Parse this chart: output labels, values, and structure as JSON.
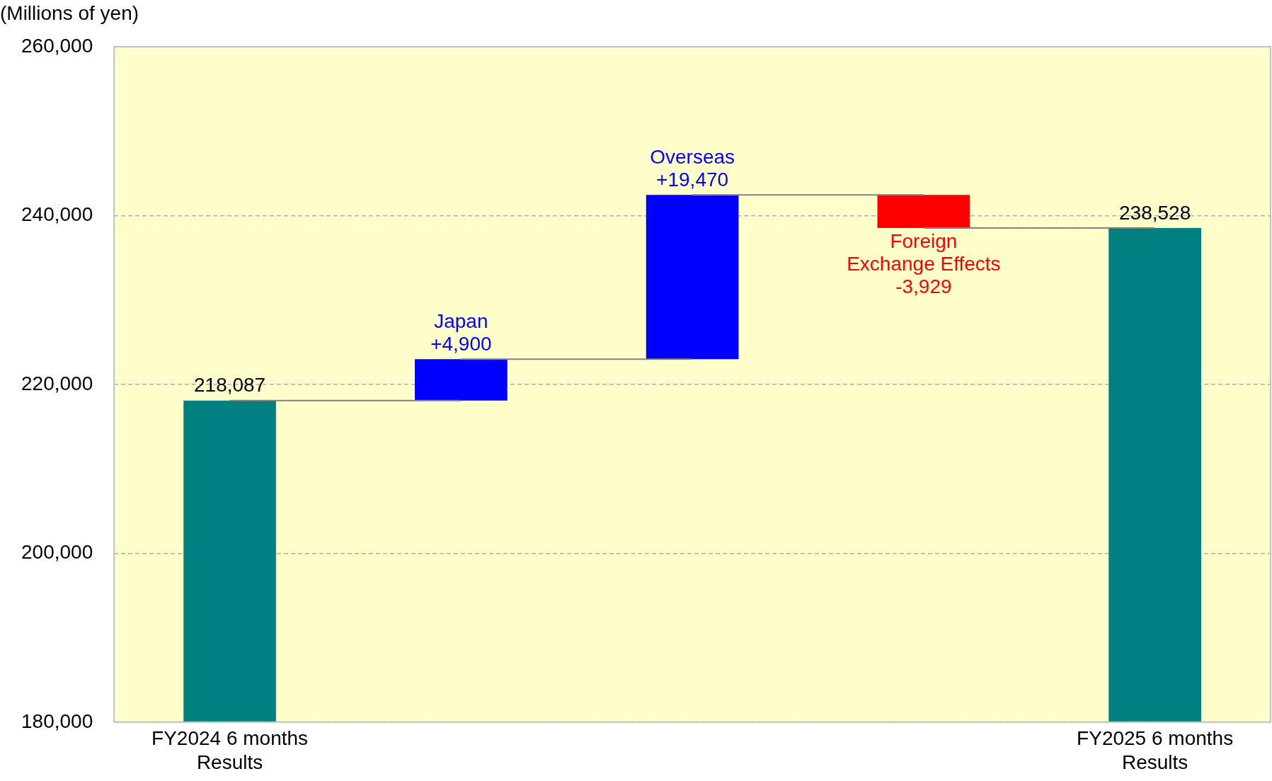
{
  "chart_data": {
    "type": "bar",
    "ylabel": "(Millions of yen)",
    "categories": [
      "FY2024 6 months\nResults",
      null,
      null,
      null,
      "FY2025 6 months\nResults"
    ],
    "values": [
      218087,
      4900,
      19470,
      -3929,
      238528
    ],
    "base": [
      null,
      218087,
      222987,
      242457,
      null
    ],
    "colors": [
      "#008080",
      "#0000ff",
      "#0000ff",
      "#ff0000",
      "#008080"
    ],
    "value_labels": [
      "218,087",
      "Japan\n+4,900",
      "Overseas\n+19,470",
      "Foreign\nExchange Effects\n-3,929",
      "238,528"
    ],
    "ylim": [
      180000,
      260000
    ],
    "yticks": [
      {
        "value": 180000,
        "label": "180,000"
      },
      {
        "value": 200000,
        "label": "200,000"
      },
      {
        "value": 220000,
        "label": "220,000"
      },
      {
        "value": 240000,
        "label": "240,000"
      },
      {
        "value": 260000,
        "label": "260,000"
      }
    ],
    "grid": "y",
    "legend": false
  }
}
